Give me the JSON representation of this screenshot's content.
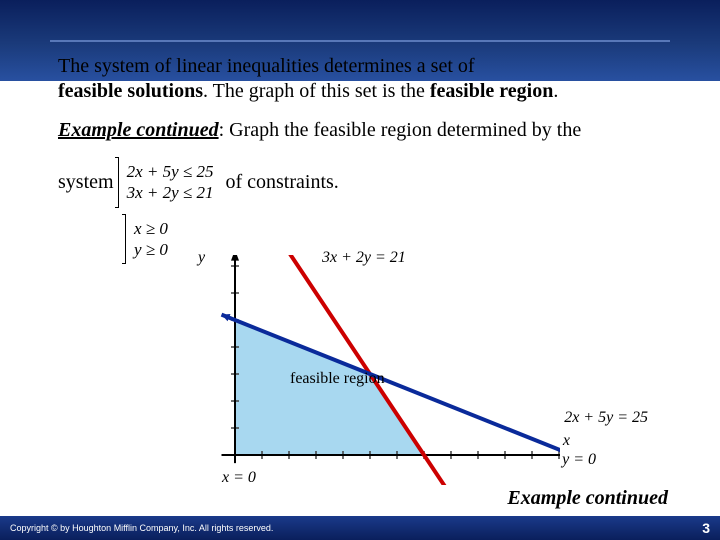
{
  "text": {
    "intro_line1": "The system of linear inequalities determines a set of",
    "intro_line2_a": "feasible solutions",
    "intro_line2_b": ".  The graph of this set is the ",
    "intro_line2_c": "feasible region",
    "period": ".",
    "example_head": "Example continued",
    "example_tail": ": Graph the feasible region determined by the",
    "system_word": "system",
    "of_constraints": "of constraints.",
    "c1": "2x + 5y ≤ 25",
    "c2": "3x + 2y ≤ 21",
    "c3": "x ≥ 0",
    "c4": "y ≥ 0",
    "feasible_region": "feasible region",
    "x_eq_0": "x = 0",
    "y_eq_0": "y = 0",
    "y_axis": "y",
    "x_axis": "x",
    "eq_red": "3x + 2y = 21",
    "eq_blue": "2x + 5y = 25",
    "ex_continued": "Example continued"
  },
  "footer": {
    "copyright": "Copyright © by Houghton Mifflin Company, Inc. All rights reserved.",
    "page": "3"
  },
  "graph": {
    "bg": "#ffffff",
    "axis_color": "#000000",
    "grid_color": "#404040",
    "region_fill": "#a8d8f0",
    "region_stroke": "#2060a0",
    "red_line": "#cc0000",
    "blue_line": "#0a2a9a",
    "origin_x": 35,
    "origin_y": 200,
    "unit": 27,
    "red_x1": 1.5,
    "red_y1": 8.25,
    "red_x2": 8.2,
    "red_y2": -1.8,
    "blue_x1": -0.5,
    "blue_y1": 5.2,
    "blue_x2": 13.5,
    "blue_y2": -0.4,
    "poly": [
      [
        0,
        0
      ],
      [
        0,
        5
      ],
      [
        5,
        3
      ],
      [
        7,
        0
      ]
    ],
    "xticks": 12,
    "yticks": 7
  }
}
